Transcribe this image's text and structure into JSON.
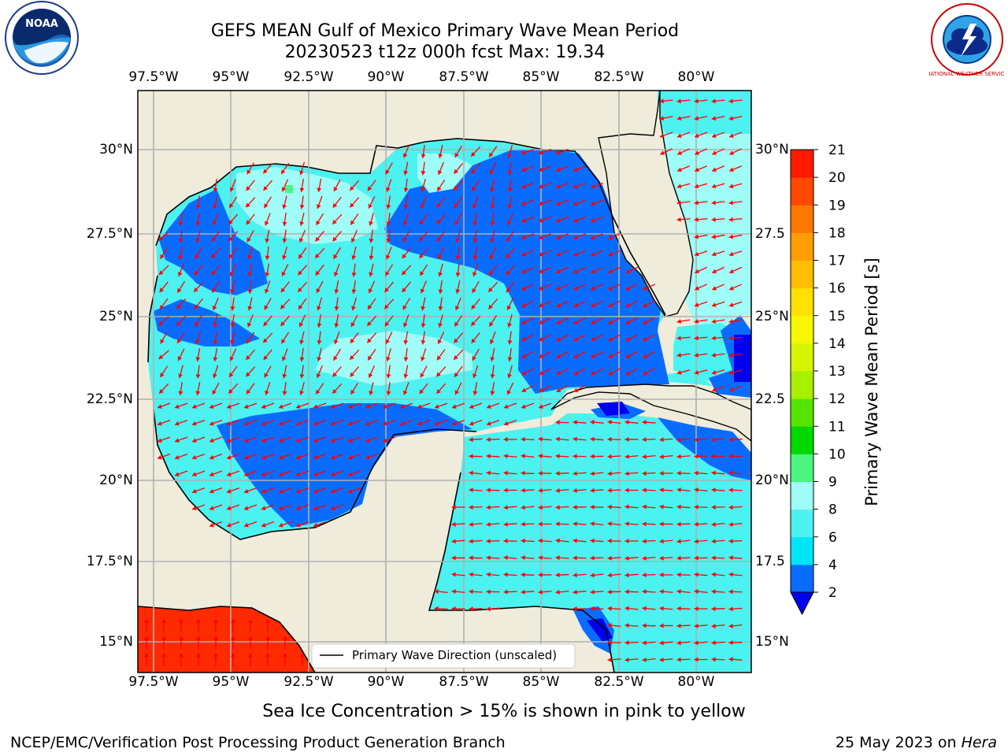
{
  "title_line1": "GEFS MEAN Gulf of Mexico Primary Wave Mean Period",
  "title_line2": "20230523 t12z 000h fcst   Max: 19.34",
  "logo_left_text": "NOAA",
  "logo_right_text": "NATIONAL WEATHER SERVICE",
  "lon_ticks": [
    "97.5°W",
    "95°W",
    "92.5°W",
    "90°W",
    "87.5°W",
    "85°W",
    "82.5°W",
    "80°W"
  ],
  "lat_ticks_left": [
    "30°N",
    "27.5°N",
    "25°N",
    "22.5°N",
    "20°N",
    "17.5°N",
    "15°N"
  ],
  "lat_ticks_right": [
    "30°N",
    "27.5",
    "25°N",
    "22.5",
    "20°N",
    "17.5",
    "15°N"
  ],
  "legend_label": "Primary Wave Direction (unscaled)",
  "colorbar": {
    "title": "Primary Wave Mean Period [s]",
    "levels": [
      2,
      4,
      6,
      8,
      9,
      10,
      11,
      12,
      13,
      14,
      15,
      16,
      17,
      18,
      19,
      20,
      21
    ],
    "colors": [
      "#0a6cff",
      "#00e5f5",
      "#4cf2f0",
      "#9ffcf6",
      "#4cf580",
      "#00d800",
      "#55e300",
      "#a8ef00",
      "#d4f400",
      "#f7f700",
      "#ffe000",
      "#ffbe00",
      "#ff9e00",
      "#ff7800",
      "#ff4800",
      "#ff1a00"
    ],
    "under_color": "#0000ee"
  },
  "caption": "Sea Ice Concentration > 15% is shown in pink to yellow",
  "footer_left": "NCEP/EMC/Verification Post Processing Product Generation Branch",
  "footer_right_prefix": "25 May 2023 on",
  "footer_right_host": "Hera",
  "colors": {
    "land": "#efecdc",
    "arrow": "#ff0000",
    "grid": "#b0b0b0"
  }
}
